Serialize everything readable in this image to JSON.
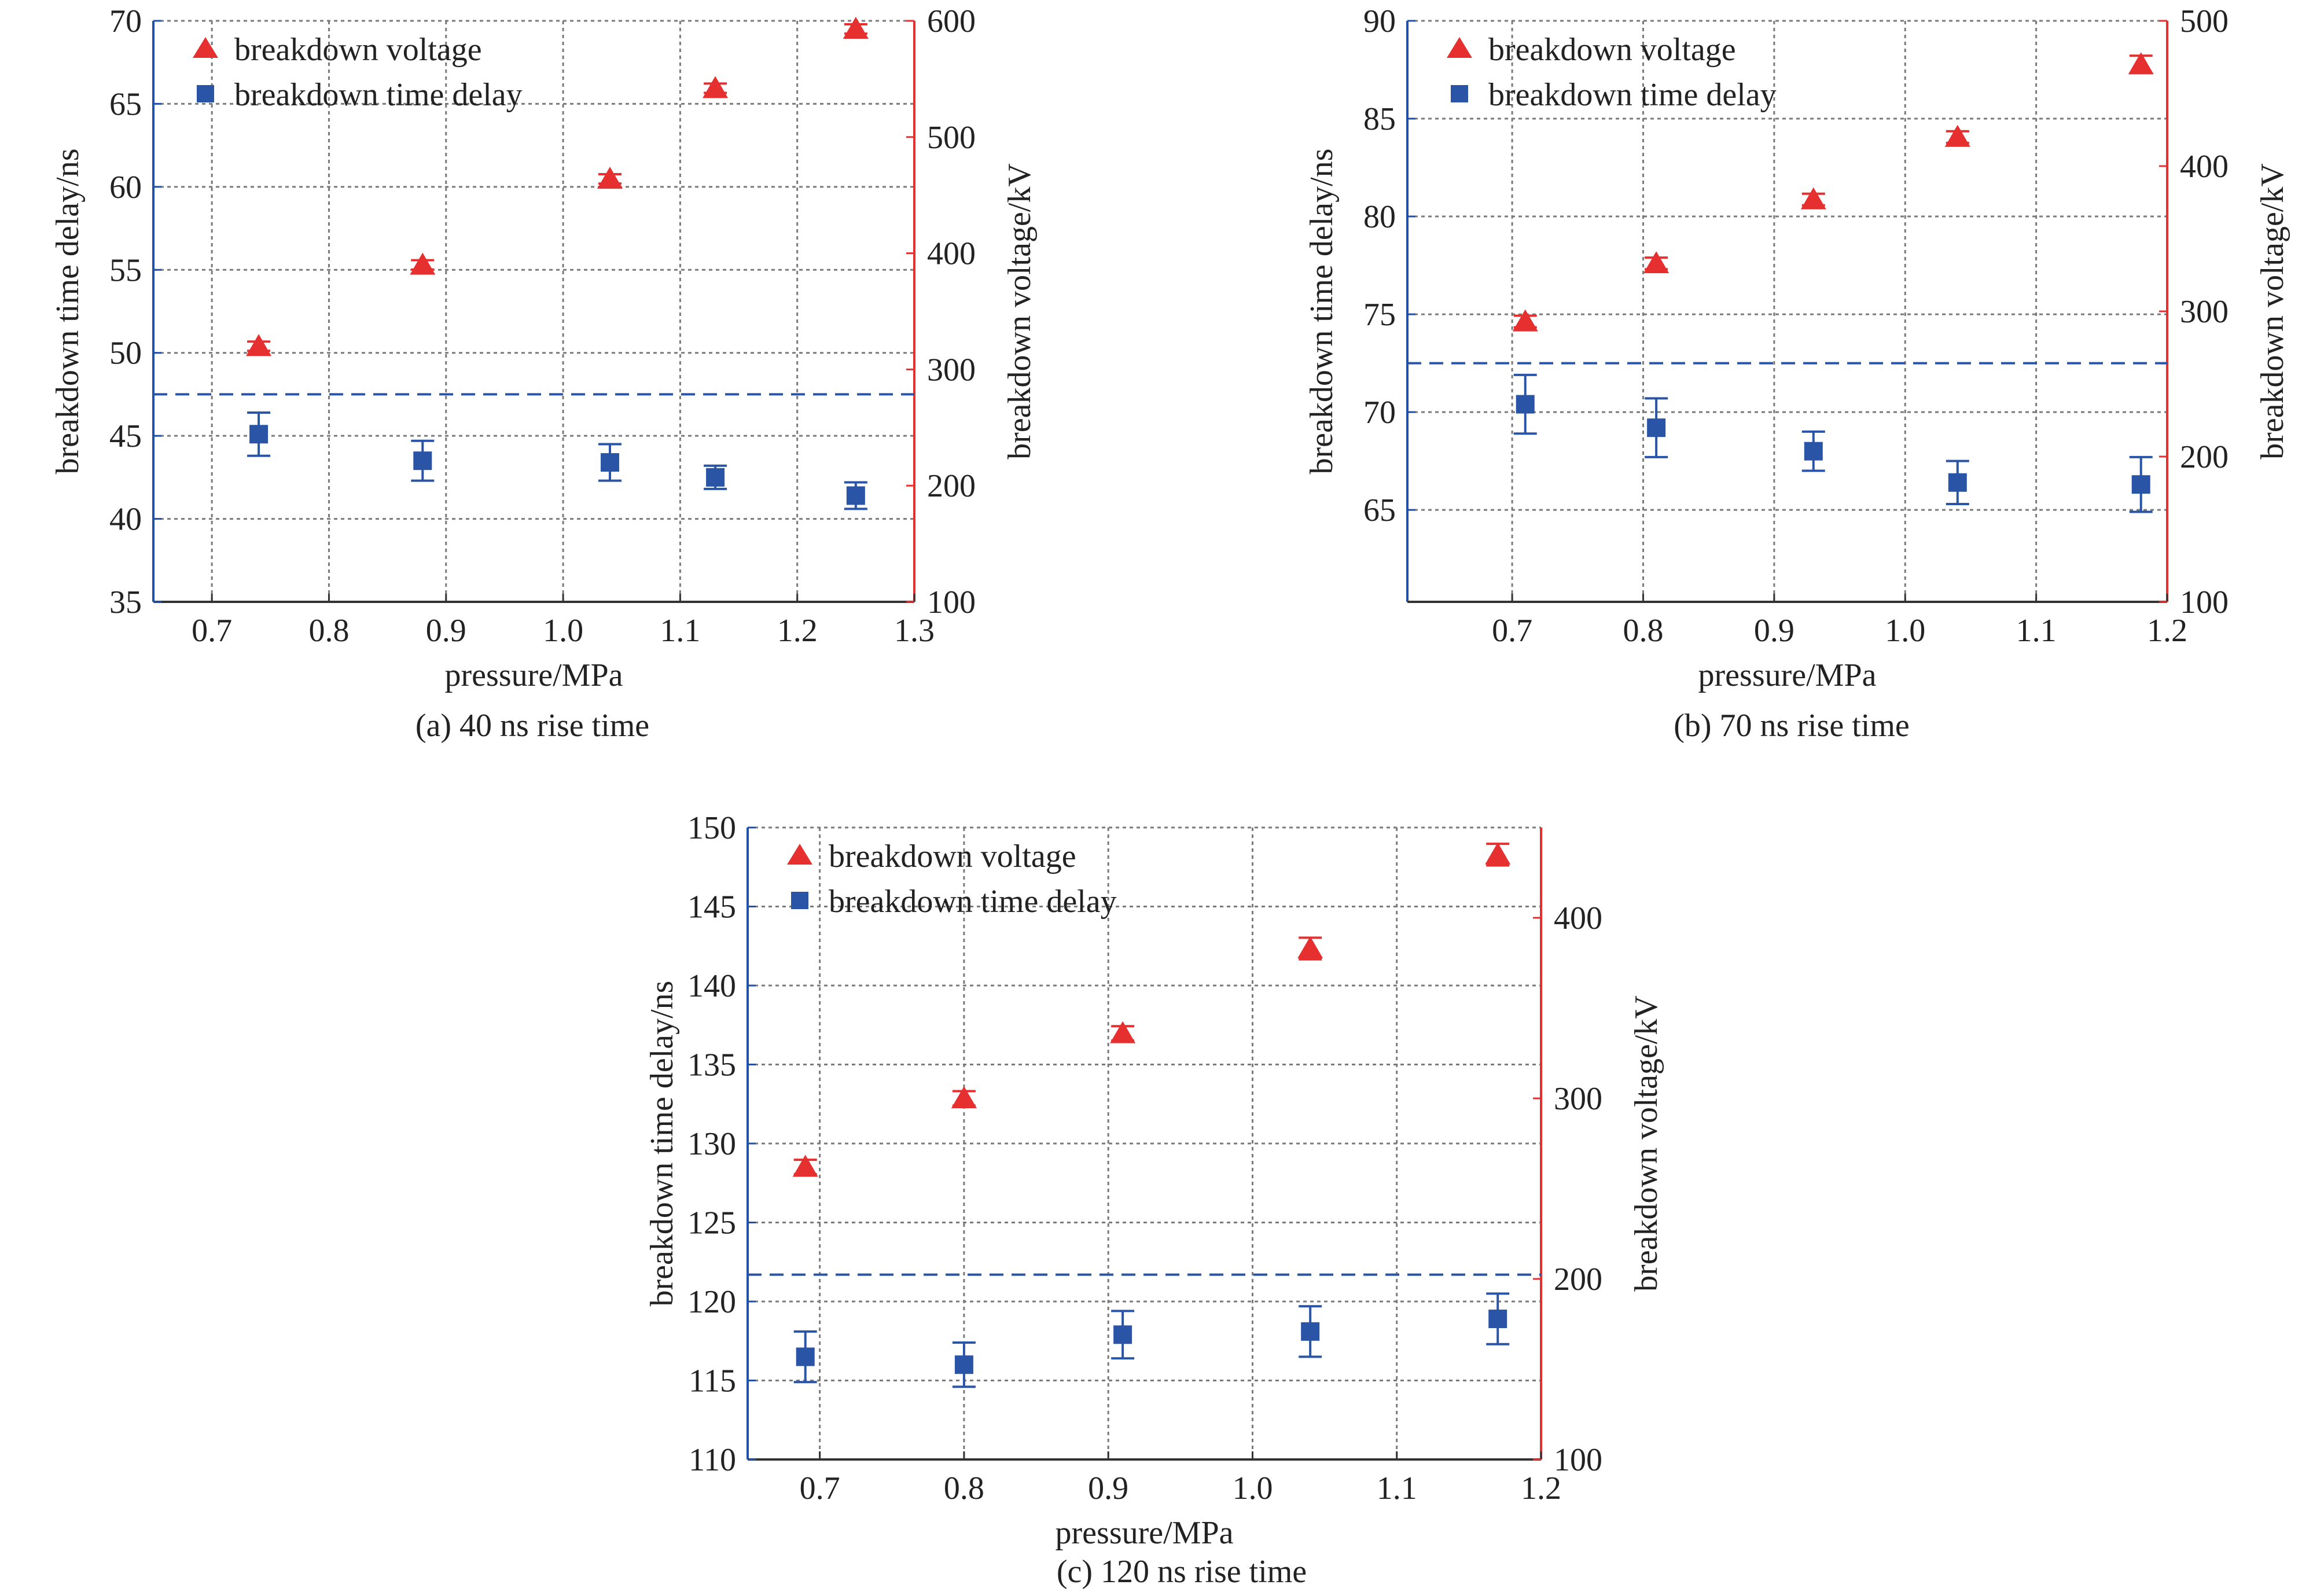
{
  "colors": {
    "left_axis": "#2050a8",
    "right_axis": "#e63030",
    "voltage": "#e63030",
    "delay": "#2a55a6",
    "grid": "#7a7a7a",
    "dashed_line": "#2a55a6",
    "text": "#222222"
  },
  "chart_data": [
    {
      "id": "a",
      "type": "scatter",
      "caption": "(a) 40 ns rise time",
      "xlabel": "pressure/MPa",
      "ylabel_left": "breakdown time delay/ns",
      "ylabel_right": "breakdown voltage/kV",
      "xlim": [
        0.65,
        1.3
      ],
      "xticks": [
        0.7,
        0.8,
        0.9,
        1.0,
        1.1,
        1.2,
        1.3
      ],
      "xtick_labels": [
        "0.7",
        "0.8",
        "0.9",
        "1.0",
        "1.1",
        "1.2",
        "1.3"
      ],
      "ylim_left": [
        35,
        70
      ],
      "yticks_left": [
        35,
        40,
        45,
        50,
        55,
        60,
        65,
        70
      ],
      "ylim_right": [
        100,
        600
      ],
      "yticks_right": [
        100,
        200,
        300,
        400,
        500,
        600
      ],
      "grid": true,
      "legend": [
        "breakdown voltage",
        "breakdown time delay"
      ],
      "legend_position": "top-left",
      "hline_left": 47.5,
      "series": [
        {
          "name": "breakdown voltage",
          "axis": "right",
          "marker": "triangle",
          "x": [
            0.74,
            0.88,
            1.04,
            1.13,
            1.25
          ],
          "y": [
            320,
            390,
            464,
            542,
            593
          ],
          "err": [
            4,
            4,
            4,
            4,
            4
          ]
        },
        {
          "name": "breakdown time delay",
          "axis": "left",
          "marker": "square",
          "x": [
            0.74,
            0.88,
            1.04,
            1.13,
            1.25
          ],
          "y": [
            45.1,
            43.5,
            43.4,
            42.5,
            41.4
          ],
          "err": [
            1.3,
            1.2,
            1.1,
            0.7,
            0.8
          ]
        }
      ]
    },
    {
      "id": "b",
      "type": "scatter",
      "caption": "(b) 70 ns rise time",
      "xlabel": "pressure/MPa",
      "ylabel_left": "breakdown time delay/ns",
      "ylabel_right": "breakdown voltage/kV",
      "xlim": [
        0.62,
        1.2
      ],
      "xticks": [
        0.7,
        0.8,
        0.9,
        1.0,
        1.1,
        1.2
      ],
      "xtick_labels": [
        "0.7",
        "0.8",
        "0.9",
        "1.0",
        "1.1",
        "1.2"
      ],
      "ylim_left": [
        60.3,
        90
      ],
      "yticks_left": [
        65,
        70,
        75,
        80,
        85,
        90
      ],
      "ylim_right": [
        100,
        500
      ],
      "yticks_right": [
        100,
        200,
        300,
        400,
        500
      ],
      "grid": true,
      "legend": [
        "breakdown voltage",
        "breakdown time delay"
      ],
      "legend_position": "top-left",
      "hline_left": 72.5,
      "series": [
        {
          "name": "breakdown voltage",
          "axis": "right",
          "marker": "triangle",
          "x": [
            0.71,
            0.81,
            0.93,
            1.04,
            1.18
          ],
          "y": [
            293,
            333,
            377,
            420,
            470
          ],
          "err": [
            4,
            4,
            4,
            4,
            6
          ]
        },
        {
          "name": "breakdown time delay",
          "axis": "left",
          "marker": "square",
          "x": [
            0.71,
            0.81,
            0.93,
            1.04,
            1.18
          ],
          "y": [
            70.4,
            69.2,
            68.0,
            66.4,
            66.3
          ],
          "err": [
            1.5,
            1.5,
            1.0,
            1.1,
            1.4
          ]
        }
      ]
    },
    {
      "id": "c",
      "type": "scatter",
      "caption": "(c) 120 ns rise time",
      "xlabel": "pressure/MPa",
      "ylabel_left": "breakdown time delay/ns",
      "ylabel_right": "breakdown voltage/kV",
      "xlim": [
        0.65,
        1.2
      ],
      "xticks": [
        0.7,
        0.8,
        0.9,
        1.0,
        1.1,
        1.2
      ],
      "xtick_labels": [
        "0.7",
        "0.8",
        "0.9",
        "1.0",
        "1.1",
        "1.2"
      ],
      "ylim_left": [
        110,
        150
      ],
      "yticks_left": [
        110,
        115,
        120,
        125,
        130,
        135,
        140,
        145,
        150
      ],
      "ylim_right": [
        100,
        450
      ],
      "yticks_right": [
        100,
        200,
        300,
        400
      ],
      "grid": true,
      "legend": [
        "breakdown voltage",
        "breakdown time delay"
      ],
      "legend_position": "top-left",
      "hline_left": 121.7,
      "series": [
        {
          "name": "breakdown voltage",
          "axis": "right",
          "marker": "triangle",
          "x": [
            0.69,
            0.8,
            0.91,
            1.04,
            1.17
          ],
          "y": [
            262,
            300,
            336,
            383,
            435
          ],
          "err": [
            4,
            4,
            4,
            6,
            6
          ]
        },
        {
          "name": "breakdown time delay",
          "axis": "left",
          "marker": "square",
          "x": [
            0.69,
            0.8,
            0.91,
            1.04,
            1.17
          ],
          "y": [
            116.5,
            116.0,
            117.9,
            118.1,
            118.9
          ],
          "err": [
            1.6,
            1.4,
            1.5,
            1.6,
            1.6
          ]
        }
      ]
    }
  ]
}
